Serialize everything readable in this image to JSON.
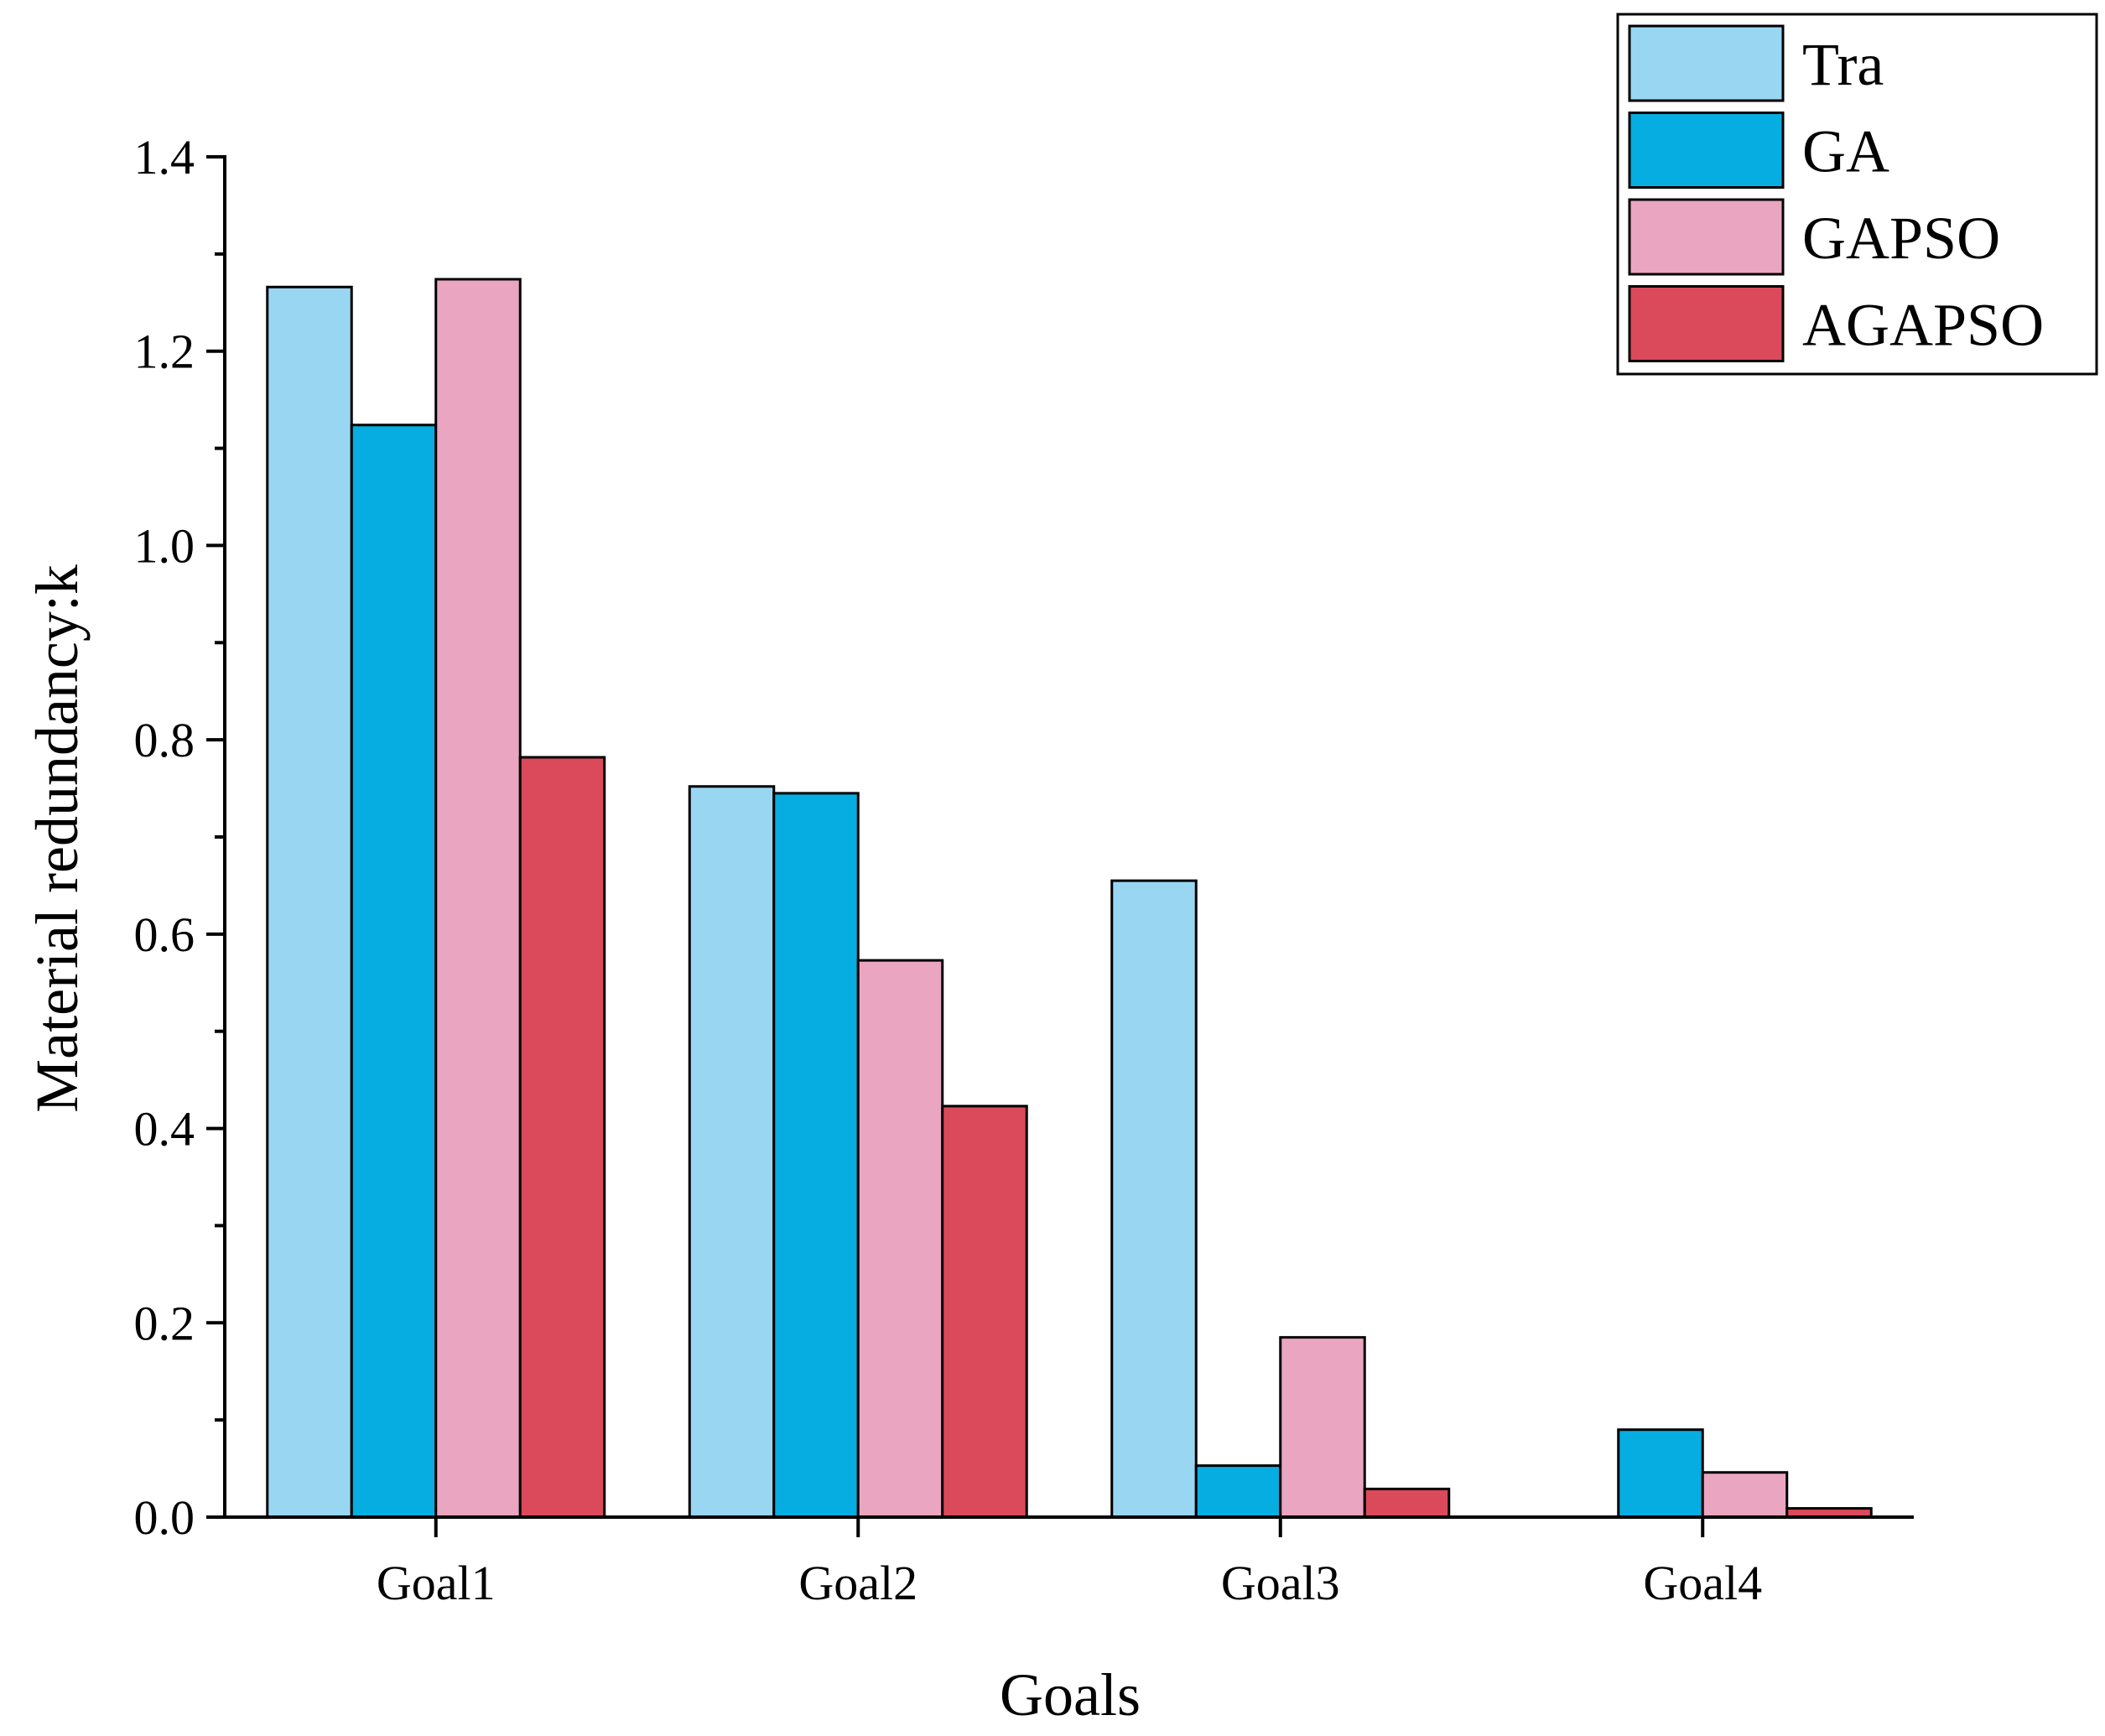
{
  "chart_data": {
    "type": "bar",
    "title": "",
    "xlabel": "Goals",
    "ylabel": "Material redundancy:k",
    "categories": [
      "Goal1",
      "Goal2",
      "Goal3",
      "Goal4"
    ],
    "ylim": [
      0,
      1.4
    ],
    "yticks": [
      0.0,
      0.2,
      0.4,
      0.6,
      0.8,
      1.0,
      1.2,
      1.4
    ],
    "ytick_labels": [
      "0.0",
      "0.2",
      "0.4",
      "0.6",
      "0.8",
      "1.0",
      "1.2",
      "1.4"
    ],
    "grid": false,
    "legend_position": "top-right",
    "series": [
      {
        "name": "Tra",
        "color": "#99D6F2",
        "values": [
          1.266,
          0.752,
          0.655,
          0.0
        ]
      },
      {
        "name": "GA",
        "color": "#06ADE1",
        "values": [
          1.124,
          0.745,
          0.053,
          0.09
        ]
      },
      {
        "name": "GAPSO",
        "color": "#EAA5C0",
        "values": [
          1.274,
          0.573,
          0.185,
          0.046
        ]
      },
      {
        "name": "AGAPSO",
        "color": "#DB4A5A",
        "values": [
          0.782,
          0.423,
          0.029,
          0.009
        ]
      }
    ]
  }
}
